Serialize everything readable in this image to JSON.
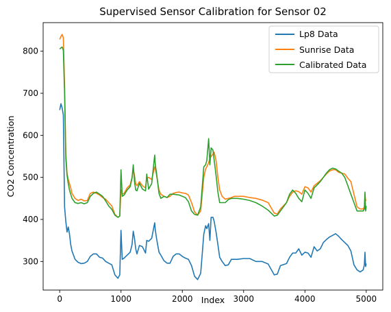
{
  "chart_data": {
    "type": "line",
    "title": "Supervised Sensor Calibration for Sensor 02",
    "xlabel": "Index",
    "ylabel": "CO2 Concentration",
    "xlim": [
      -270,
      5270
    ],
    "ylim": [
      232,
      868
    ],
    "xticks": [
      0,
      1000,
      2000,
      3000,
      4000,
      5000
    ],
    "yticks": [
      300,
      400,
      500,
      600,
      700,
      800
    ],
    "grid": false,
    "legend_position": "top-right",
    "x": [
      0,
      20,
      40,
      60,
      80,
      100,
      120,
      140,
      160,
      180,
      200,
      250,
      300,
      350,
      400,
      450,
      500,
      550,
      600,
      650,
      700,
      750,
      800,
      850,
      900,
      950,
      980,
      1000,
      1020,
      1050,
      1100,
      1150,
      1180,
      1200,
      1220,
      1240,
      1260,
      1300,
      1350,
      1400,
      1420,
      1450,
      1500,
      1550,
      1560,
      1580,
      1620,
      1650,
      1700,
      1750,
      1800,
      1850,
      1900,
      1950,
      2000,
      2050,
      2100,
      2150,
      2200,
      2250,
      2300,
      2350,
      2380,
      2400,
      2430,
      2450,
      2470,
      2500,
      2520,
      2550,
      2580,
      2610,
      2650,
      2700,
      2750,
      2800,
      2850,
      2900,
      3000,
      3100,
      3200,
      3300,
      3400,
      3500,
      3550,
      3600,
      3700,
      3750,
      3800,
      3850,
      3900,
      3950,
      4000,
      4050,
      4100,
      4150,
      4200,
      4250,
      4300,
      4350,
      4400,
      4450,
      4500,
      4550,
      4600,
      4650,
      4700,
      4750,
      4800,
      4850,
      4900,
      4950,
      4970,
      4980,
      4990,
      5000
    ],
    "series": [
      {
        "name": "Lp8 Data",
        "color": "#1f77b4",
        "values": [
          660,
          675,
          665,
          648,
          430,
          395,
          370,
          382,
          365,
          340,
          325,
          305,
          298,
          295,
          296,
          300,
          312,
          318,
          318,
          310,
          308,
          300,
          296,
          292,
          268,
          260,
          268,
          374,
          305,
          308,
          315,
          322,
          340,
          372,
          355,
          330,
          318,
          338,
          335,
          320,
          350,
          348,
          355,
          392,
          375,
          355,
          322,
          315,
          302,
          296,
          296,
          312,
          318,
          318,
          312,
          308,
          305,
          290,
          265,
          257,
          272,
          365,
          385,
          378,
          390,
          350,
          405,
          405,
          395,
          370,
          340,
          310,
          300,
          290,
          292,
          305,
          305,
          305,
          307,
          307,
          300,
          300,
          294,
          268,
          270,
          290,
          295,
          310,
          320,
          320,
          330,
          315,
          322,
          320,
          310,
          335,
          325,
          330,
          345,
          352,
          358,
          362,
          366,
          360,
          352,
          345,
          338,
          325,
          292,
          280,
          275,
          280,
          292,
          322,
          288,
          295
        ]
      },
      {
        "name": "Sunrise Data",
        "color": "#ff7f0e",
        "values": [
          828,
          835,
          840,
          832,
          720,
          560,
          510,
          495,
          485,
          475,
          462,
          450,
          445,
          448,
          444,
          445,
          462,
          465,
          462,
          458,
          452,
          448,
          440,
          432,
          412,
          405,
          408,
          470,
          460,
          462,
          475,
          482,
          500,
          520,
          505,
          485,
          480,
          490,
          480,
          475,
          498,
          500,
          495,
          525,
          520,
          505,
          470,
          460,
          455,
          452,
          455,
          462,
          464,
          465,
          463,
          462,
          458,
          440,
          418,
          410,
          420,
          500,
          520,
          525,
          535,
          545,
          550,
          555,
          560,
          540,
          500,
          470,
          455,
          448,
          450,
          452,
          455,
          455,
          455,
          452,
          450,
          446,
          440,
          415,
          413,
          425,
          440,
          455,
          465,
          468,
          466,
          460,
          478,
          475,
          465,
          480,
          486,
          492,
          500,
          508,
          515,
          518,
          518,
          512,
          510,
          508,
          498,
          490,
          460,
          430,
          425,
          425,
          430,
          460,
          445,
          447
        ]
      },
      {
        "name": "Calibrated Data",
        "color": "#2ca02c",
        "values": [
          805,
          808,
          810,
          802,
          700,
          545,
          505,
          485,
          470,
          460,
          450,
          440,
          438,
          440,
          437,
          440,
          455,
          462,
          465,
          460,
          455,
          444,
          432,
          424,
          410,
          405,
          408,
          518,
          455,
          458,
          470,
          478,
          498,
          530,
          490,
          470,
          468,
          486,
          472,
          468,
          508,
          472,
          485,
          553,
          530,
          510,
          462,
          450,
          455,
          452,
          460,
          460,
          459,
          458,
          455,
          452,
          442,
          420,
          412,
          410,
          430,
          525,
          530,
          540,
          592,
          530,
          570,
          565,
          540,
          505,
          465,
          440,
          440,
          440,
          447,
          450,
          450,
          450,
          448,
          445,
          440,
          432,
          422,
          408,
          410,
          420,
          440,
          460,
          470,
          462,
          450,
          442,
          470,
          462,
          450,
          475,
          482,
          490,
          500,
          510,
          518,
          522,
          520,
          515,
          510,
          500,
          480,
          460,
          440,
          420,
          420,
          420,
          425,
          465,
          420,
          432
        ]
      }
    ]
  }
}
